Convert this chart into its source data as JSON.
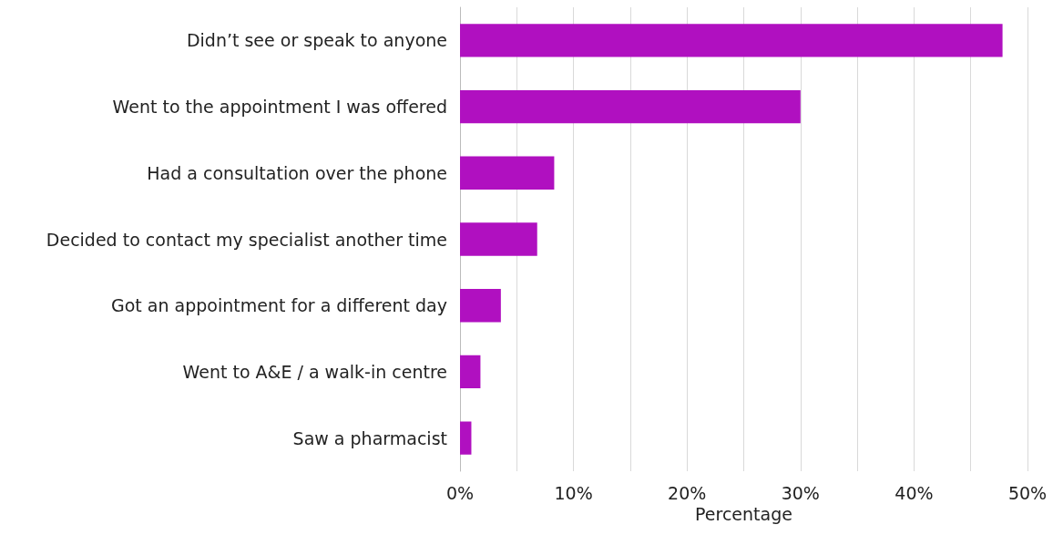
{
  "chart_data": {
    "type": "bar",
    "orientation": "horizontal",
    "xlabel": "Percentage",
    "categories": [
      "Didn’t see or speak to anyone",
      "Went to the appointment I was offered",
      "Had a consultation over the phone",
      "Decided to contact my specialist another time",
      "Got an appointment for a different day",
      "Went to A&E / a walk-in centre",
      "Saw a pharmacist"
    ],
    "values": [
      47.8,
      30,
      8.3,
      6.8,
      3.6,
      1.8,
      1
    ],
    "color": "#b010c0",
    "xlim": [
      0,
      50
    ],
    "xticks": [
      {
        "value": 0,
        "label": "0%"
      },
      {
        "value": 5,
        "label": null
      },
      {
        "value": 10,
        "label": "10%"
      },
      {
        "value": 15,
        "label": null
      },
      {
        "value": 20,
        "label": "20%"
      },
      {
        "value": 25,
        "label": null
      },
      {
        "value": 30,
        "label": "30%"
      },
      {
        "value": 35,
        "label": null
      },
      {
        "value": 40,
        "label": "40%"
      },
      {
        "value": 45,
        "label": null
      },
      {
        "value": 50,
        "label": "50%"
      }
    ],
    "grid": "x"
  }
}
